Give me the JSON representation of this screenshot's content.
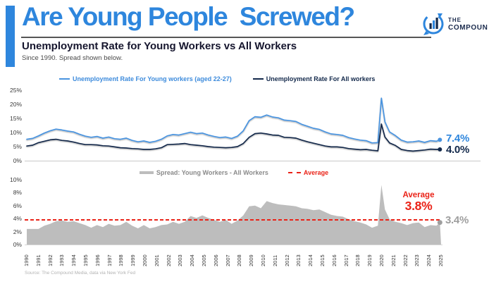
{
  "header": {
    "accent_color": "#2e86dd",
    "title": "Are Young People  Screwed?",
    "subtitle": "Unemployment Rate for Young Workers vs All Workers",
    "tagline": "Since 1990. Spread shown below.",
    "logo": {
      "line1": "THE",
      "line2": "COMPOUND",
      "icon": "speech-bubble-bar-chart"
    }
  },
  "colors": {
    "brand_blue": "#2e86dd",
    "young_line": "#4a94e0",
    "all_line": "#13294b",
    "spread_gray": "#bdbdbd",
    "average_red": "#ea2318",
    "end_gray": "#9e9e9e"
  },
  "chart_data": [
    {
      "type": "line",
      "title": "Unemployment Rate for Young Workers vs All Workers",
      "x": [
        1990,
        1990.5,
        1991,
        1991.5,
        1992,
        1992.5,
        1993,
        1993.5,
        1994,
        1994.5,
        1995,
        1995.5,
        1996,
        1996.5,
        1997,
        1997.5,
        1998,
        1998.5,
        1999,
        1999.5,
        2000,
        2000.5,
        2001,
        2001.5,
        2002,
        2002.5,
        2003,
        2003.5,
        2004,
        2004.5,
        2005,
        2005.5,
        2006,
        2006.5,
        2007,
        2007.5,
        2008,
        2008.5,
        2009,
        2009.5,
        2010,
        2010.5,
        2011,
        2011.5,
        2012,
        2012.5,
        2013,
        2013.5,
        2014,
        2014.5,
        2015,
        2015.5,
        2016,
        2016.5,
        2017,
        2017.5,
        2018,
        2018.5,
        2019,
        2019.5,
        2020,
        2020.3,
        2020.6,
        2021,
        2021.5,
        2022,
        2022.5,
        2023,
        2023.5,
        2024,
        2024.5,
        2025,
        2025.3
      ],
      "series": [
        {
          "name": "Unemployment Rate For Young workers (aged 22-27)",
          "color": "#4a94e0",
          "end_label": "7.4%",
          "values": [
            7.6,
            7.9,
            8.8,
            9.8,
            10.6,
            11.2,
            10.9,
            10.5,
            10.2,
            9.4,
            8.7,
            8.3,
            8.6,
            8.0,
            8.4,
            7.8,
            7.6,
            8.0,
            7.2,
            6.7,
            7.0,
            6.5,
            6.9,
            7.6,
            8.8,
            9.3,
            9.1,
            9.6,
            10.1,
            9.6,
            9.8,
            9.1,
            8.6,
            8.2,
            8.4,
            7.9,
            8.7,
            10.6,
            14.2,
            15.6,
            15.4,
            16.2,
            15.5,
            15.2,
            14.4,
            14.2,
            13.9,
            12.9,
            12.2,
            11.5,
            11.1,
            10.2,
            9.5,
            9.3,
            9.0,
            8.2,
            7.7,
            7.3,
            7.1,
            6.3,
            6.4,
            22.2,
            13.8,
            10.2,
            8.9,
            7.3,
            6.6,
            6.7,
            7.0,
            6.5,
            7.1,
            6.9,
            7.4
          ]
        },
        {
          "name": "Unemployment Rate For All workers",
          "color": "#13294b",
          "end_label": "4.0%",
          "values": [
            5.2,
            5.5,
            6.4,
            6.9,
            7.4,
            7.6,
            7.2,
            7.0,
            6.6,
            6.1,
            5.7,
            5.7,
            5.6,
            5.3,
            5.2,
            4.9,
            4.6,
            4.5,
            4.3,
            4.2,
            4.0,
            4.0,
            4.2,
            4.6,
            5.7,
            5.8,
            5.9,
            6.1,
            5.7,
            5.5,
            5.3,
            5.0,
            4.8,
            4.7,
            4.6,
            4.7,
            5.0,
            6.1,
            8.3,
            9.6,
            9.8,
            9.5,
            9.1,
            9.0,
            8.3,
            8.2,
            8.0,
            7.3,
            6.7,
            6.2,
            5.7,
            5.2,
            4.9,
            4.9,
            4.7,
            4.3,
            4.1,
            3.9,
            4.0,
            3.7,
            3.5,
            13.0,
            8.4,
            6.3,
            5.4,
            4.0,
            3.6,
            3.4,
            3.6,
            3.8,
            4.1,
            4.0,
            4.0
          ]
        }
      ],
      "xlim": [
        1990,
        2025.4
      ],
      "ylim": [
        0,
        25
      ],
      "yticks": [
        "25%",
        "20%",
        "15%",
        "10%",
        "5%",
        "0%"
      ],
      "legend_position": "top",
      "grid": false
    },
    {
      "type": "area",
      "legend": "Spread: Young Workers - All Workers",
      "color": "#bdbdbd",
      "x": [
        1990,
        1990.5,
        1991,
        1991.5,
        1992,
        1992.5,
        1993,
        1993.5,
        1994,
        1994.5,
        1995,
        1995.5,
        1996,
        1996.5,
        1997,
        1997.5,
        1998,
        1998.5,
        1999,
        1999.5,
        2000,
        2000.5,
        2001,
        2001.5,
        2002,
        2002.5,
        2003,
        2003.5,
        2004,
        2004.5,
        2005,
        2005.5,
        2006,
        2006.5,
        2007,
        2007.5,
        2008,
        2008.5,
        2009,
        2009.5,
        2010,
        2010.5,
        2011,
        2011.5,
        2012,
        2012.5,
        2013,
        2013.5,
        2014,
        2014.5,
        2015,
        2015.5,
        2016,
        2016.5,
        2017,
        2017.5,
        2018,
        2018.5,
        2019,
        2019.5,
        2020,
        2020.3,
        2020.6,
        2021,
        2021.5,
        2022,
        2022.5,
        2023,
        2023.5,
        2024,
        2024.5,
        2025,
        2025.3
      ],
      "values": [
        2.4,
        2.4,
        2.4,
        2.9,
        3.2,
        3.6,
        3.7,
        3.5,
        3.6,
        3.3,
        3.0,
        2.6,
        3.0,
        2.7,
        3.2,
        2.9,
        3.0,
        3.5,
        2.9,
        2.5,
        3.0,
        2.5,
        2.7,
        3.0,
        3.1,
        3.5,
        3.2,
        3.5,
        4.4,
        4.1,
        4.5,
        4.1,
        3.8,
        3.5,
        3.8,
        3.2,
        3.7,
        4.5,
        5.9,
        6.0,
        5.6,
        6.7,
        6.4,
        6.2,
        6.1,
        6.0,
        5.9,
        5.6,
        5.5,
        5.3,
        5.4,
        5.0,
        4.6,
        4.4,
        4.3,
        3.9,
        3.6,
        3.4,
        3.1,
        2.6,
        2.9,
        9.2,
        5.4,
        3.9,
        3.5,
        3.3,
        3.0,
        3.3,
        3.4,
        2.7,
        3.0,
        2.9,
        3.4
      ],
      "average": 3.8,
      "average_color": "#ea2318",
      "average_legend": "Average",
      "annotation": {
        "label": "Average",
        "value": "3.8%"
      },
      "end_label": "3.4%",
      "xlim": [
        1990,
        2025.4
      ],
      "ylim": [
        0,
        10
      ],
      "yticks": [
        "10%",
        "8%",
        "6%",
        "4%",
        "2%",
        "0%"
      ],
      "xticklabels": [
        "1990",
        "1991",
        "1992",
        "1993",
        "1994",
        "1995",
        "1996",
        "1997",
        "1998",
        "1999",
        "2000",
        "2001",
        "2002",
        "2003",
        "2004",
        "2005",
        "2006",
        "2007",
        "2008",
        "2009",
        "2010",
        "2011",
        "2012",
        "2013",
        "2014",
        "2015",
        "2016",
        "2017",
        "2018",
        "2019",
        "2020",
        "2021",
        "2022",
        "2023",
        "2024",
        "2025"
      ],
      "grid": false
    }
  ],
  "source": "Source: The Compound Media, data via New York Fed"
}
